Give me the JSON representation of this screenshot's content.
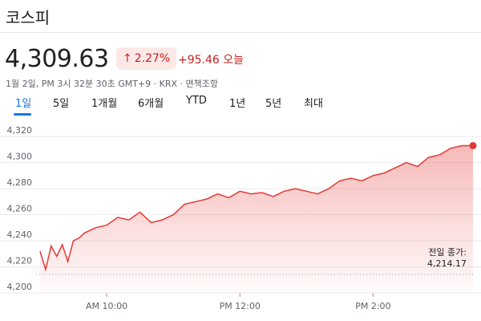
{
  "header": {
    "title": "코스피"
  },
  "quote": {
    "price": "4,309.63",
    "change_percent": "2.27%",
    "change_arrow_icon": "arrow-up-icon",
    "change_abs": "+95.46 오늘",
    "meta": "1월 2일, PM 3시 32분 30초 GMT+9 · KRX · 면책조항",
    "up_color": "#c5221f"
  },
  "tabs": [
    {
      "label": "1일",
      "active": true
    },
    {
      "label": "5일"
    },
    {
      "label": "1개월"
    },
    {
      "label": "6개월"
    },
    {
      "label": "YTD"
    },
    {
      "label": "1년"
    },
    {
      "label": "5년"
    },
    {
      "label": "최대"
    }
  ],
  "previous_close": {
    "label": "전일 종가:",
    "value": "4,214.17"
  },
  "chart_data": {
    "type": "line",
    "title": "",
    "xlabel": "",
    "ylabel": "",
    "ylim": [
      4200,
      4325
    ],
    "y_ticks": [
      "4,320",
      "4,300",
      "4,280",
      "4,260",
      "4,240",
      "4,220",
      "4,200"
    ],
    "x_ticks": [
      "AM 10:00",
      "PM 12:00",
      "PM 2:00"
    ],
    "x_tick_times": [
      "10:00",
      "12:00",
      "14:00"
    ],
    "xlim": [
      "09:00",
      "15:30"
    ],
    "grid": true,
    "reference_line": 4214.17,
    "line_color": "#e53935",
    "series": [
      {
        "x": [
          "09:00",
          "09:05",
          "09:10",
          "09:15",
          "09:20",
          "09:25",
          "09:30",
          "09:35",
          "09:40",
          "09:50",
          "10:00",
          "10:10",
          "10:20",
          "10:30",
          "10:40",
          "10:50",
          "11:00",
          "11:10",
          "11:20",
          "11:30",
          "11:40",
          "11:50",
          "12:00",
          "12:10",
          "12:20",
          "12:30",
          "12:40",
          "12:50",
          "13:00",
          "13:10",
          "13:20",
          "13:30",
          "13:40",
          "13:50",
          "14:00",
          "14:10",
          "14:20",
          "14:30",
          "14:40",
          "14:50",
          "15:00",
          "15:10",
          "15:20",
          "15:30"
        ],
        "y": [
          4232,
          4218,
          4236,
          4228,
          4237,
          4224,
          4240,
          4242,
          4246,
          4250,
          4252,
          4258,
          4256,
          4262,
          4254,
          4256,
          4260,
          4268,
          4270,
          4272,
          4276,
          4273,
          4278,
          4276,
          4277,
          4274,
          4278,
          4280,
          4278,
          4276,
          4280,
          4286,
          4288,
          4286,
          4290,
          4292,
          4296,
          4300,
          4297,
          4304,
          4306,
          4311,
          4313,
          4313
        ]
      }
    ]
  }
}
